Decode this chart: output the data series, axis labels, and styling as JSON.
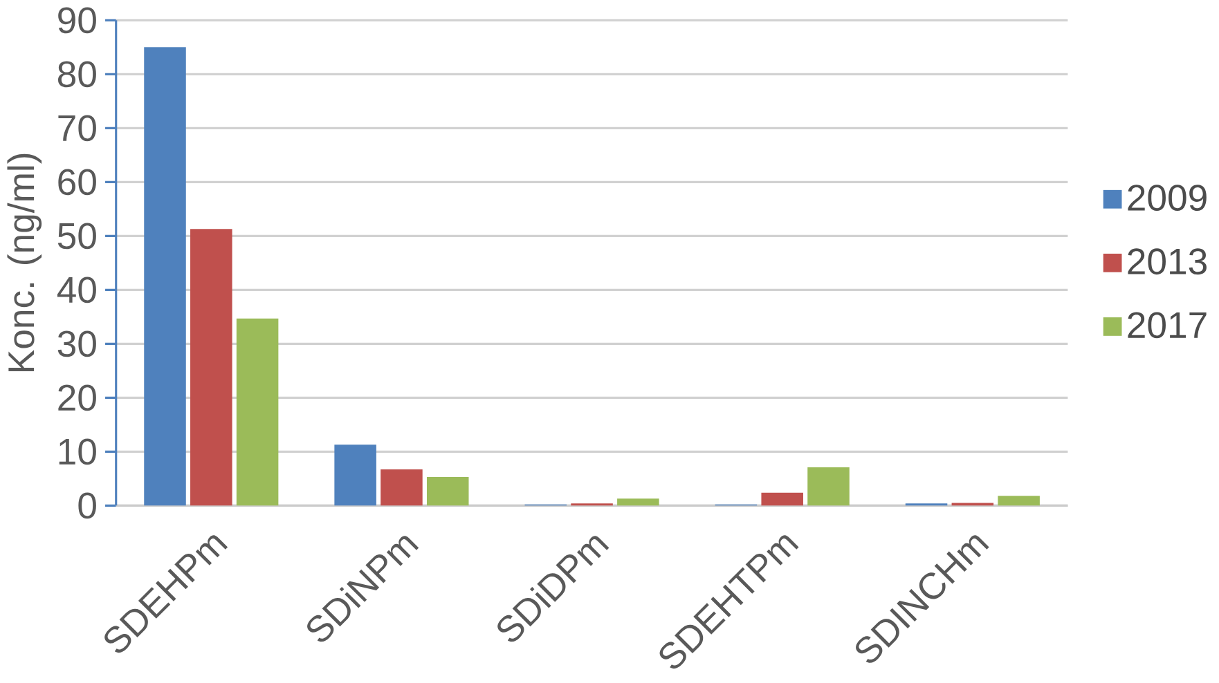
{
  "chart_data": {
    "type": "bar",
    "ylabel": "Konc. (ng/ml)",
    "categories": [
      "SDEHPm",
      "SDiNPm",
      "SDiDPm",
      "SDEHTPm",
      "SDINCHm"
    ],
    "series": [
      {
        "name": "2009",
        "color": "#4f81bd",
        "values": [
          85,
          11.3,
          0.2,
          0.2,
          0.4
        ]
      },
      {
        "name": "2013",
        "color": "#c0504d",
        "values": [
          51.3,
          6.7,
          0.4,
          2.4,
          0.5
        ]
      },
      {
        "name": "2017",
        "color": "#9bbb59",
        "values": [
          34.7,
          5.3,
          1.3,
          7.1,
          1.8
        ]
      }
    ],
    "ylim": [
      0,
      90
    ],
    "yticks": [
      0,
      10,
      20,
      30,
      40,
      50,
      60,
      70,
      80,
      90
    ],
    "grid": "y",
    "legend": "right"
  }
}
